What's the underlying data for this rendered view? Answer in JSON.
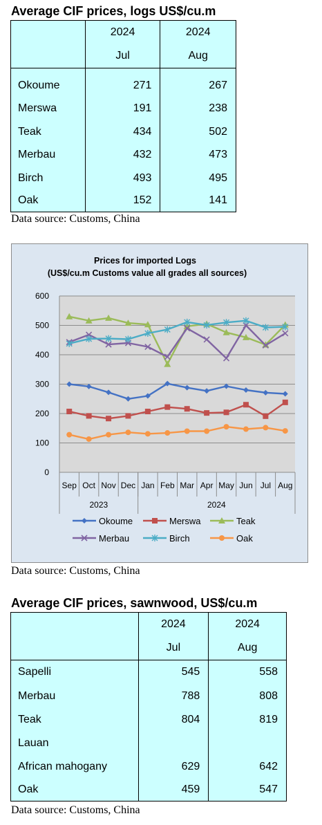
{
  "logs": {
    "title": "Average CIF prices, logs US$/cu.m",
    "header": {
      "year1": "2024",
      "year2": "2024",
      "month1": "Jul",
      "month2": "Aug"
    },
    "rows": [
      {
        "name": "Okoume",
        "jul": "271",
        "aug": "267"
      },
      {
        "name": "Merswa",
        "jul": "191",
        "aug": "238"
      },
      {
        "name": "Teak",
        "jul": "434",
        "aug": "502"
      },
      {
        "name": "Merbau",
        "jul": "432",
        "aug": "473"
      },
      {
        "name": "Birch",
        "jul": "493",
        "aug": "495"
      },
      {
        "name": "Oak",
        "jul": "152",
        "aug": "141"
      }
    ],
    "source": "Data source: Customs, China"
  },
  "chart_source": "Data source: Customs, China",
  "sawnwood": {
    "title": "Average CIF prices, sawnwood, US$/cu.m",
    "header": {
      "year1": "2024",
      "year2": "2024",
      "month1": "Jul",
      "month2": "Aug"
    },
    "rows": [
      {
        "name": "Sapelli",
        "jul": "545",
        "aug": "558"
      },
      {
        "name": "Merbau",
        "jul": "788",
        "aug": "808"
      },
      {
        "name": "Teak",
        "jul": "804",
        "aug": "819"
      },
      {
        "name": "Lauan",
        "jul": "",
        "aug": ""
      },
      {
        "name": "African mahogany",
        "jul": "629",
        "aug": "642"
      },
      {
        "name": "Oak",
        "jul": "459",
        "aug": "547"
      }
    ],
    "source": "Data source: Customs, China"
  },
  "chart_data": {
    "type": "line",
    "title": "Prices for imported Logs",
    "subtitle": "(US$/cu.m Customs value all grades all sources)",
    "categories": [
      "Sep",
      "Oct",
      "Nov",
      "Dec",
      "Jan",
      "Feb",
      "Mar",
      "Apr",
      "May",
      "Jun",
      "Jul",
      "Aug"
    ],
    "year_groups": [
      {
        "label": "2023",
        "span": 4
      },
      {
        "label": "2024",
        "span": 8
      }
    ],
    "ylim": [
      0,
      600
    ],
    "yticks": [
      0,
      100,
      200,
      300,
      400,
      500,
      600
    ],
    "grid": true,
    "legend": "bottom",
    "series": [
      {
        "name": "Okoume",
        "color": "#4472c4",
        "marker": "diamond",
        "values": [
          300,
          292,
          272,
          250,
          260,
          302,
          288,
          277,
          293,
          280,
          271,
          267
        ]
      },
      {
        "name": "Merswa",
        "color": "#c0504d",
        "marker": "square",
        "values": [
          207,
          192,
          183,
          192,
          207,
          222,
          216,
          202,
          204,
          230,
          191,
          238
        ]
      },
      {
        "name": "Teak",
        "color": "#9bbb59",
        "marker": "triangle",
        "values": [
          530,
          516,
          525,
          508,
          503,
          368,
          497,
          505,
          476,
          459,
          434,
          502
        ]
      },
      {
        "name": "Merbau",
        "color": "#8064a2",
        "marker": "x",
        "values": [
          443,
          468,
          435,
          440,
          427,
          393,
          490,
          452,
          388,
          500,
          432,
          473
        ]
      },
      {
        "name": "Birch",
        "color": "#4bacc6",
        "marker": "star",
        "values": [
          438,
          454,
          455,
          453,
          473,
          486,
          511,
          501,
          510,
          516,
          493,
          495
        ]
      },
      {
        "name": "Oak",
        "color": "#f79646",
        "marker": "circle",
        "values": [
          128,
          113,
          128,
          136,
          131,
          134,
          140,
          140,
          155,
          147,
          152,
          141
        ]
      }
    ]
  }
}
